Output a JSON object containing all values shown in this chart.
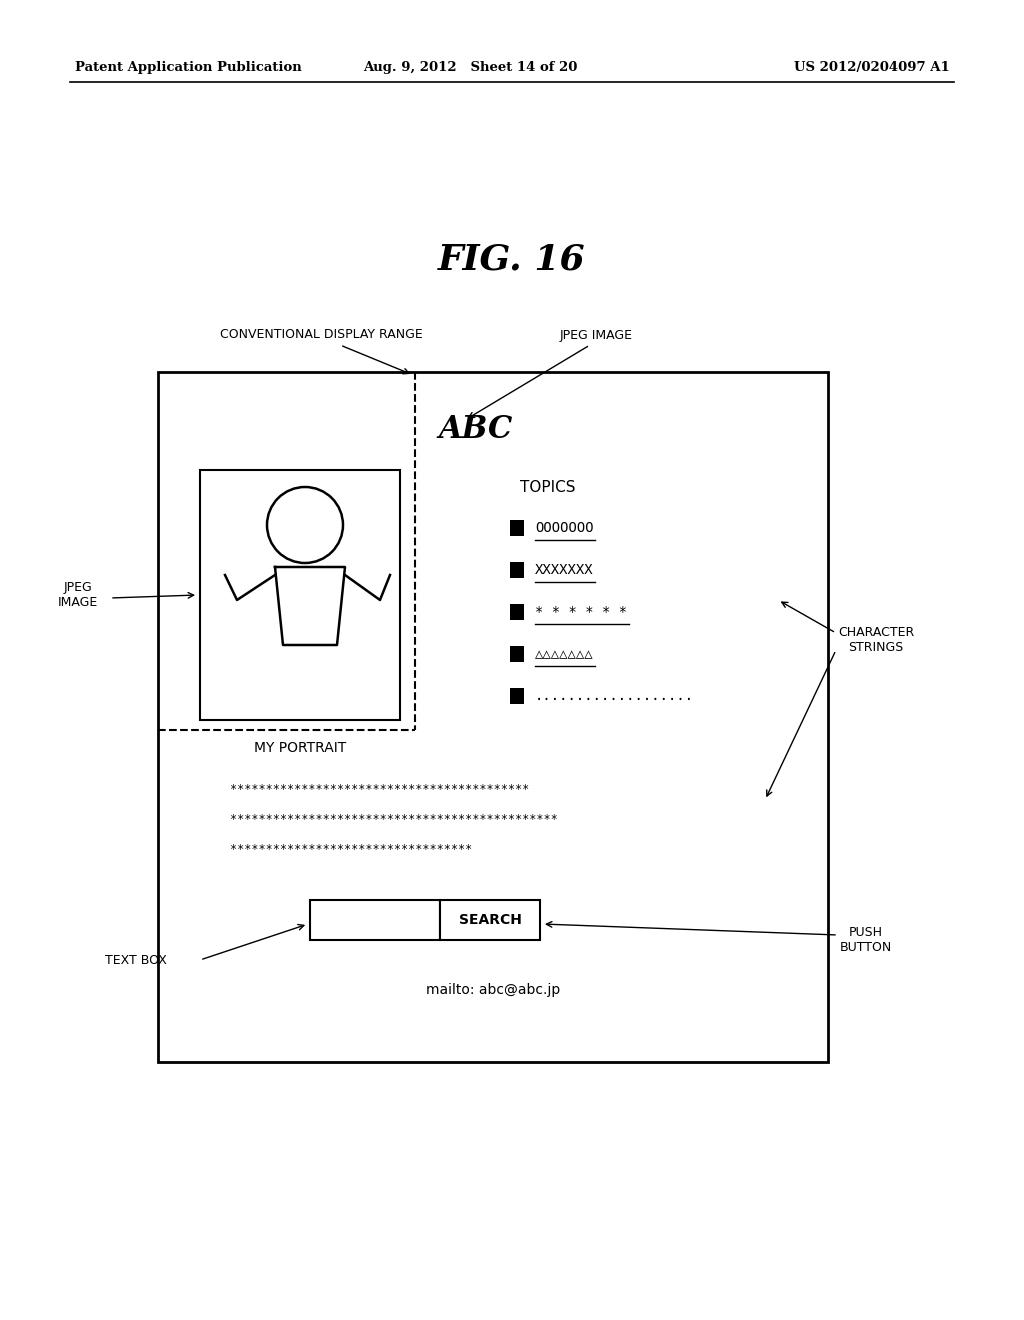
{
  "bg_color": "#ffffff",
  "header_left": "Patent Application Publication",
  "header_mid": "Aug. 9, 2012   Sheet 14 of 20",
  "header_right": "US 2012/0204097 A1",
  "fig_title": "FIG. 16",
  "label_conventional": "CONVENTIONAL DISPLAY RANGE",
  "label_jpeg_top": "JPEG IMAGE",
  "label_jpeg_left": "JPEG\nIMAGE",
  "label_char_strings": "CHARACTER\nSTRINGS",
  "label_text_box": "TEXT BOX",
  "label_push_button": "PUSH\nBUTTON",
  "abc_text": "ABC",
  "topics_label": "TOPICS",
  "portrait_label": "MY PORTRAIT",
  "char_strings_lines": [
    "******************************************",
    "**********************************************",
    "**********************************"
  ],
  "mailto_text": "mailto: abc@abc.jp",
  "search_label": "SEARCH"
}
